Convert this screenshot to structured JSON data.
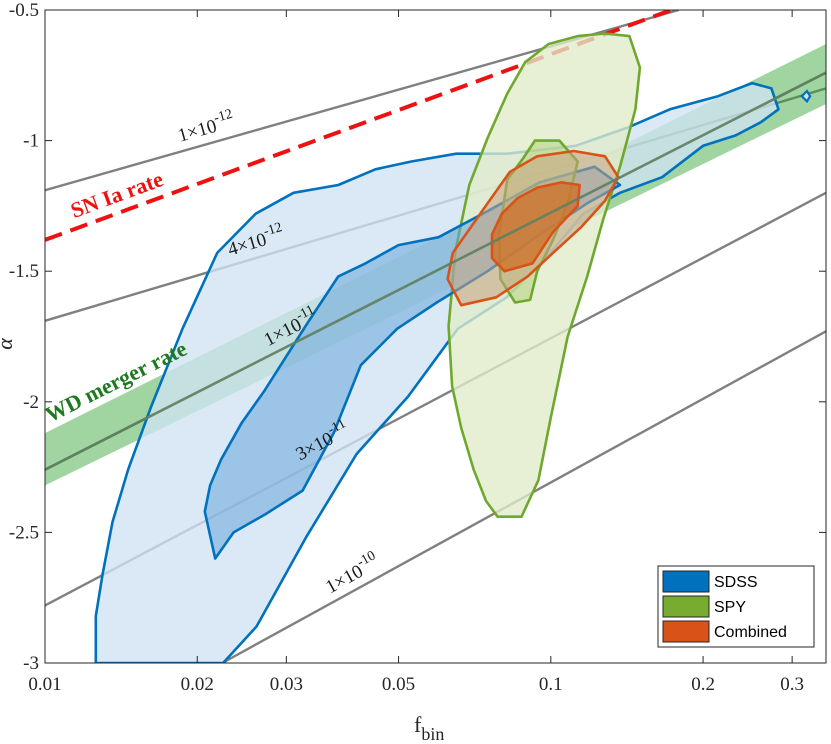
{
  "chart_data": {
    "type": "line",
    "xlabel": "f",
    "xlabel_sub": "bin",
    "ylabel": "α",
    "xscale": "log",
    "xlim": [
      0.01,
      0.35
    ],
    "ylim": [
      -3.0,
      -0.5
    ],
    "xticks": [
      {
        "v": 0.01,
        "label": "0.01"
      },
      {
        "v": 0.02,
        "label": "0.02"
      },
      {
        "v": 0.03,
        "label": "0.03"
      },
      {
        "v": 0.05,
        "label": "0.05"
      },
      {
        "v": 0.1,
        "label": "0.1"
      },
      {
        "v": 0.2,
        "label": "0.2"
      },
      {
        "v": 0.3,
        "label": "0.3"
      }
    ],
    "yticks": [
      {
        "v": -0.5,
        "label": "-0.5"
      },
      {
        "v": -1.0,
        "label": "-1"
      },
      {
        "v": -1.5,
        "label": "-1.5"
      },
      {
        "v": -2.0,
        "label": "-2"
      },
      {
        "v": -2.5,
        "label": "-2.5"
      },
      {
        "v": -3.0,
        "label": "-3"
      }
    ],
    "rate_lines": [
      {
        "mantissa": "1×10",
        "exponent": "-12",
        "color": "#808080",
        "points": [
          [
            0.01,
            -1.19
          ],
          [
            0.179,
            -0.5
          ]
        ]
      },
      {
        "mantissa": "4×10",
        "exponent": "-12",
        "color": "#808080",
        "points": [
          [
            0.01,
            -1.69
          ],
          [
            0.35,
            -0.8
          ]
        ]
      },
      {
        "mantissa": "1×10",
        "exponent": "-11",
        "color": "#707070",
        "points": [
          [
            0.01,
            -2.26
          ],
          [
            0.35,
            -0.74
          ]
        ]
      },
      {
        "mantissa": "3×10",
        "exponent": "-11",
        "color": "#808080",
        "points": [
          [
            0.01,
            -2.78
          ],
          [
            0.35,
            -1.2
          ]
        ]
      },
      {
        "mantissa": "1×10",
        "exponent": "-10",
        "color": "#808080",
        "points": [
          [
            0.0224,
            -3.0
          ],
          [
            0.35,
            -1.73
          ]
        ]
      }
    ],
    "sn_ia_line": {
      "label": "SN Ia rate",
      "color": "#ee1111",
      "points": [
        [
          0.01,
          -1.38
        ],
        [
          0.173,
          -0.5
        ]
      ]
    },
    "wd_band": {
      "label": "WD merger rate",
      "color": "#2ca02c",
      "lower": [
        [
          0.01,
          -2.32
        ],
        [
          0.35,
          -0.86
        ]
      ],
      "upper": [
        [
          0.01,
          -2.12
        ],
        [
          0.35,
          -0.63
        ]
      ]
    },
    "series": [
      {
        "name": "SDSS",
        "color": "#0072bd",
        "fill_outer": "#cfe3f2",
        "fill_inner": "#6aa6d8",
        "outer": [
          [
            0.0126,
            -3.0
          ],
          [
            0.0225,
            -3.0
          ],
          [
            0.0262,
            -2.86
          ],
          [
            0.0328,
            -2.52
          ],
          [
            0.0413,
            -2.2
          ],
          [
            0.0522,
            -1.98
          ],
          [
            0.0655,
            -1.72
          ],
          [
            0.0818,
            -1.6
          ],
          [
            0.0988,
            -1.44
          ],
          [
            0.116,
            -1.28
          ],
          [
            0.137,
            -1.2
          ],
          [
            0.166,
            -1.14
          ],
          [
            0.2,
            -1.02
          ],
          [
            0.232,
            -0.98
          ],
          [
            0.26,
            -0.93
          ],
          [
            0.282,
            -0.88
          ],
          [
            0.273,
            -0.8
          ],
          [
            0.25,
            -0.78
          ],
          [
            0.214,
            -0.83
          ],
          [
            0.172,
            -0.88
          ],
          [
            0.142,
            -0.95
          ],
          [
            0.112,
            -1.02
          ],
          [
            0.082,
            -1.05
          ],
          [
            0.065,
            -1.05
          ],
          [
            0.053,
            -1.08
          ],
          [
            0.045,
            -1.11
          ],
          [
            0.038,
            -1.17
          ],
          [
            0.031,
            -1.2
          ],
          [
            0.0261,
            -1.28
          ],
          [
            0.0219,
            -1.43
          ],
          [
            0.0187,
            -1.72
          ],
          [
            0.0162,
            -2.02
          ],
          [
            0.0146,
            -2.26
          ],
          [
            0.0136,
            -2.46
          ],
          [
            0.013,
            -2.66
          ],
          [
            0.0126,
            -2.82
          ]
        ],
        "inner": [
          [
            0.0207,
            -2.42
          ],
          [
            0.0217,
            -2.6
          ],
          [
            0.0236,
            -2.5
          ],
          [
            0.0273,
            -2.43
          ],
          [
            0.0323,
            -2.34
          ],
          [
            0.0372,
            -2.12
          ],
          [
            0.0421,
            -1.86
          ],
          [
            0.0497,
            -1.72
          ],
          [
            0.0595,
            -1.62
          ],
          [
            0.075,
            -1.5
          ],
          [
            0.095,
            -1.36
          ],
          [
            0.118,
            -1.24
          ],
          [
            0.137,
            -1.17
          ],
          [
            0.122,
            -1.1
          ],
          [
            0.095,
            -1.16
          ],
          [
            0.075,
            -1.27
          ],
          [
            0.06,
            -1.37
          ],
          [
            0.05,
            -1.4
          ],
          [
            0.043,
            -1.47
          ],
          [
            0.038,
            -1.52
          ],
          [
            0.033,
            -1.7
          ],
          [
            0.0271,
            -1.96
          ],
          [
            0.0245,
            -2.08
          ],
          [
            0.0223,
            -2.22
          ],
          [
            0.0212,
            -2.32
          ]
        ]
      },
      {
        "name": "SPY",
        "color": "#6fa82e",
        "fill_outer": "#e0ecc9",
        "fill_inner": "#b5d17c",
        "outer": [
          [
            0.075,
            -0.99
          ],
          [
            0.069,
            -1.17
          ],
          [
            0.0648,
            -1.42
          ],
          [
            0.0628,
            -1.71
          ],
          [
            0.0638,
            -1.94
          ],
          [
            0.0665,
            -2.1
          ],
          [
            0.0704,
            -2.26
          ],
          [
            0.0745,
            -2.38
          ],
          [
            0.0785,
            -2.44
          ],
          [
            0.0875,
            -2.44
          ],
          [
            0.0945,
            -2.3
          ],
          [
            0.1,
            -2.06
          ],
          [
            0.108,
            -1.75
          ],
          [
            0.118,
            -1.52
          ],
          [
            0.127,
            -1.3
          ],
          [
            0.137,
            -1.1
          ],
          [
            0.147,
            -0.88
          ],
          [
            0.15,
            -0.72
          ],
          [
            0.143,
            -0.6
          ],
          [
            0.128,
            -0.59
          ],
          [
            0.113,
            -0.6
          ],
          [
            0.099,
            -0.63
          ],
          [
            0.089,
            -0.7
          ],
          [
            0.082,
            -0.82
          ]
        ],
        "inner": [
          [
            0.082,
            -1.15
          ],
          [
            0.079,
            -1.36
          ],
          [
            0.0795,
            -1.53
          ],
          [
            0.085,
            -1.62
          ],
          [
            0.091,
            -1.61
          ],
          [
            0.094,
            -1.5
          ],
          [
            0.101,
            -1.38
          ],
          [
            0.108,
            -1.24
          ],
          [
            0.113,
            -1.08
          ],
          [
            0.104,
            -1.0
          ],
          [
            0.093,
            -1.0
          ],
          [
            0.088,
            -1.07
          ]
        ]
      },
      {
        "name": "Combined",
        "color": "#d95319",
        "fill_outer": "#c7a283",
        "fill_inner": "#d2691e",
        "outer": [
          [
            0.0625,
            -1.53
          ],
          [
            0.0665,
            -1.63
          ],
          [
            0.078,
            -1.6
          ],
          [
            0.09,
            -1.52
          ],
          [
            0.101,
            -1.43
          ],
          [
            0.115,
            -1.33
          ],
          [
            0.128,
            -1.23
          ],
          [
            0.136,
            -1.14
          ],
          [
            0.128,
            -1.06
          ],
          [
            0.111,
            -1.04
          ],
          [
            0.094,
            -1.06
          ],
          [
            0.083,
            -1.12
          ],
          [
            0.075,
            -1.24
          ],
          [
            0.069,
            -1.34
          ],
          [
            0.064,
            -1.43
          ]
        ],
        "inner": [
          [
            0.0765,
            -1.45
          ],
          [
            0.081,
            -1.5
          ],
          [
            0.092,
            -1.47
          ],
          [
            0.101,
            -1.35
          ],
          [
            0.113,
            -1.25
          ],
          [
            0.114,
            -1.17
          ],
          [
            0.105,
            -1.16
          ],
          [
            0.094,
            -1.18
          ],
          [
            0.086,
            -1.22
          ],
          [
            0.08,
            -1.28
          ],
          [
            0.0765,
            -1.36
          ]
        ]
      }
    ],
    "legend": {
      "placement": "bottom-right",
      "entries": [
        {
          "label": "SDSS",
          "color": "#0072bd"
        },
        {
          "label": "SPY",
          "color": "#77ac30"
        },
        {
          "label": "Combined",
          "color": "#d95319"
        }
      ]
    },
    "grid": false
  }
}
